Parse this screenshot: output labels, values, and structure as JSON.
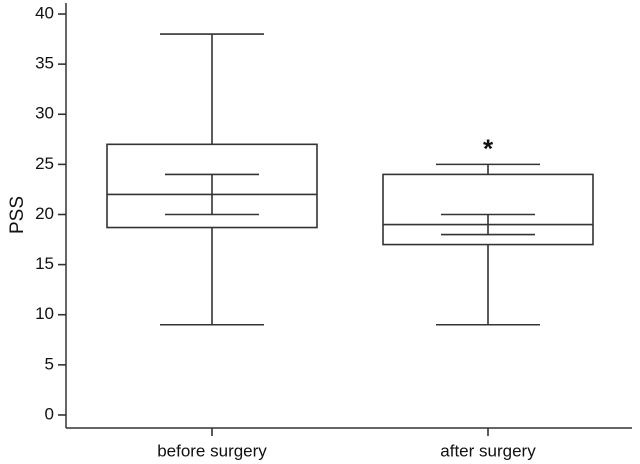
{
  "chart_data": {
    "type": "box",
    "y_label": "PSS",
    "categories": [
      "before surgery",
      "after surgery"
    ],
    "boxes": [
      {
        "whislo": 9,
        "q1": 18.7,
        "med": 22,
        "q3": 27,
        "whishi": 38,
        "ci_low": 20,
        "ci_high": 24
      },
      {
        "whislo": 9,
        "q1": 17,
        "med": 19,
        "q3": 24,
        "whishi": 25,
        "ci_low": 18,
        "ci_high": 20,
        "note": "*"
      }
    ],
    "color": "#333333",
    "ylim": [
      -1.3,
      41.1
    ],
    "yticks": [
      0,
      5,
      10,
      15,
      20,
      25,
      30,
      35,
      40
    ]
  }
}
